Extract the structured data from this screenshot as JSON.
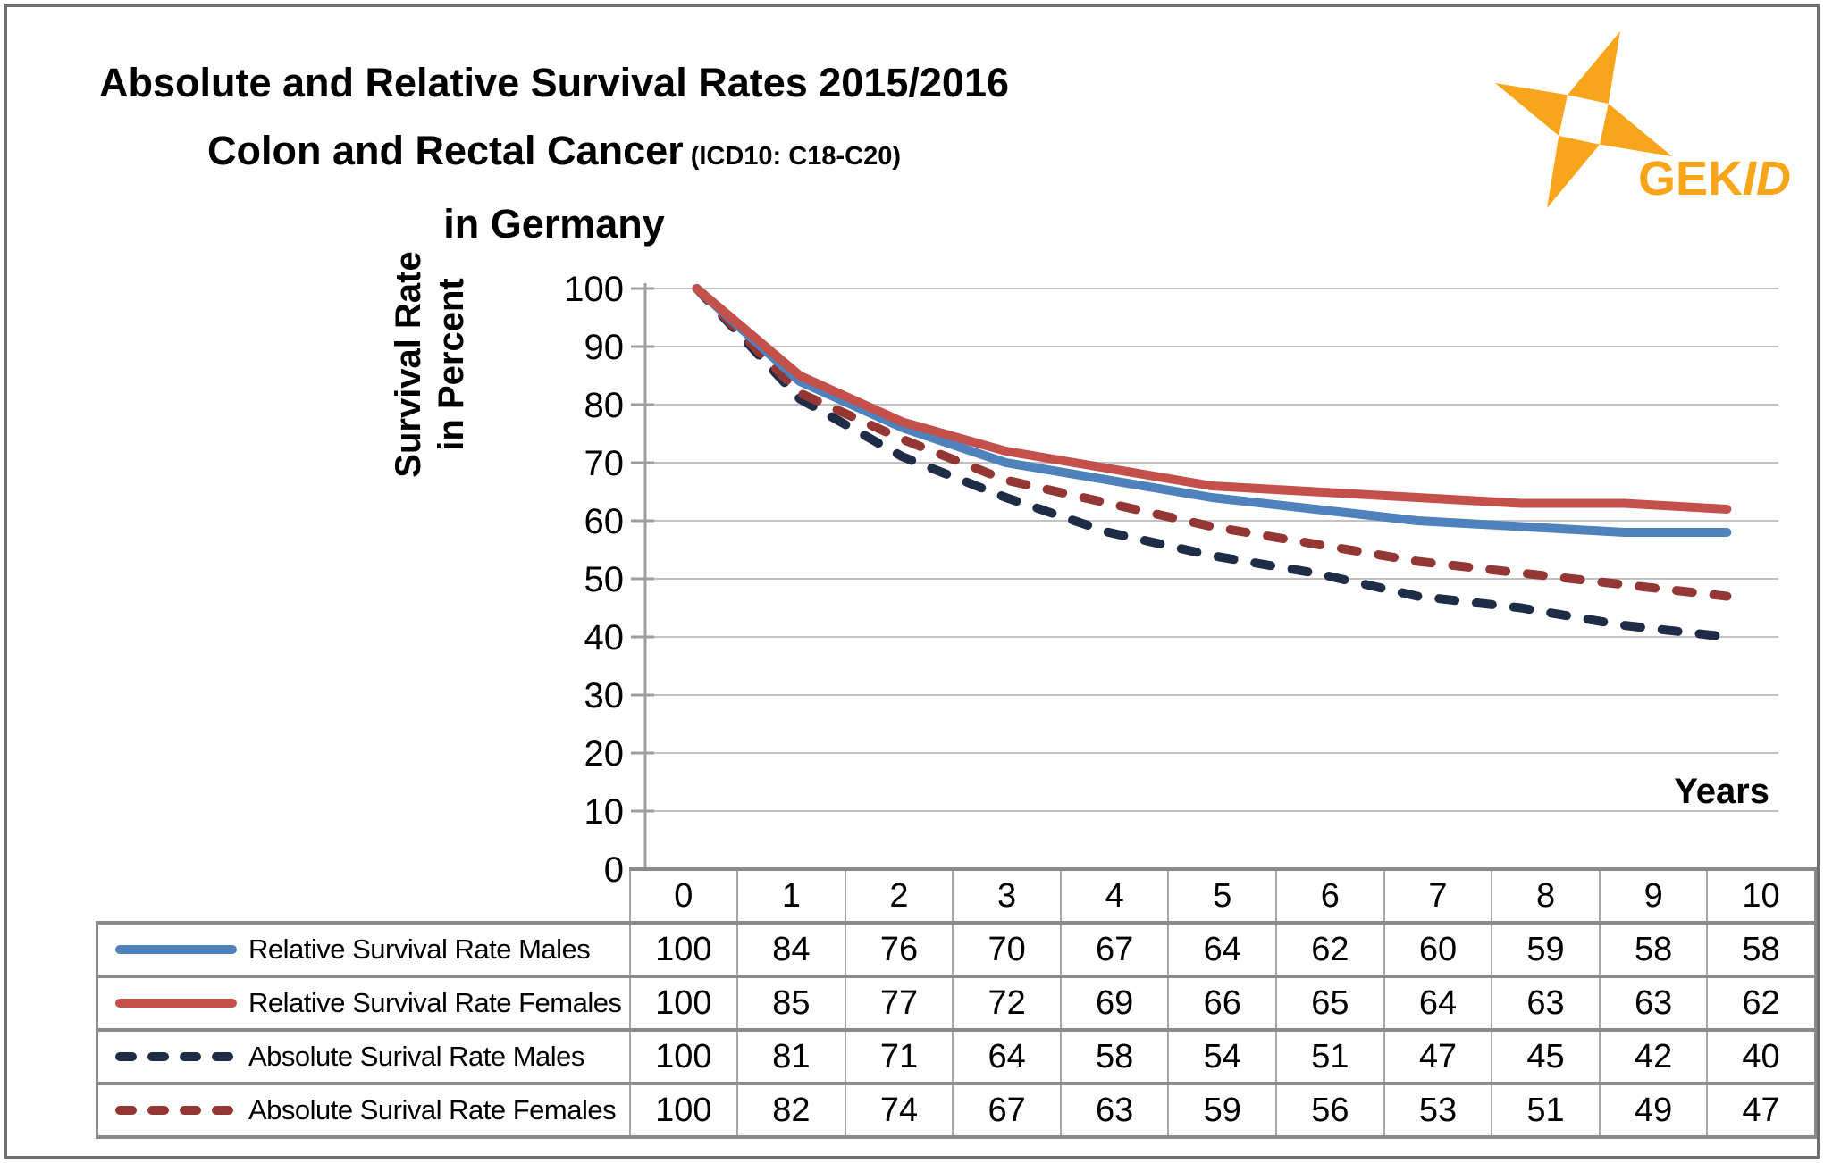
{
  "title": {
    "line1": "Absolute and Relative Survival Rates 2015/2016",
    "line2_main": "Colon and Rectal Cancer",
    "line2_sub": " (ICD10: C18-C20)",
    "line3": "in Germany"
  },
  "logo": {
    "text_bold": "GEK",
    "text_italic": "ID",
    "color": "#F9A51B"
  },
  "chart_data": {
    "type": "line",
    "title": "Absolute and Relative Survival Rates 2015/2016 Colon and Rectal Cancer (ICD10: C18-C20) in Germany",
    "ylabel_lines": [
      "Survival Rate",
      "in Percent"
    ],
    "xlabel": "Years",
    "categories": [
      "0",
      "1",
      "2",
      "3",
      "4",
      "5",
      "6",
      "7",
      "8",
      "9",
      "10"
    ],
    "ylim": [
      0,
      100
    ],
    "yticks": [
      0,
      10,
      20,
      30,
      40,
      50,
      60,
      70,
      80,
      90,
      100
    ],
    "grid": true,
    "legend_position": "table-left-column",
    "series": [
      {
        "name": "Relative Survival Rate Males",
        "color": "#4F81BD",
        "line_style": "solid",
        "values": [
          100,
          84,
          76,
          70,
          67,
          64,
          62,
          60,
          59,
          58,
          58
        ]
      },
      {
        "name": "Relative Survival Rate Females",
        "color": "#C4504C",
        "line_style": "solid",
        "values": [
          100,
          85,
          77,
          72,
          69,
          66,
          65,
          64,
          63,
          63,
          62
        ]
      },
      {
        "name": "Absolute Surival Rate Males",
        "color": "#1F2C47",
        "line_style": "dashed",
        "values": [
          100,
          81,
          71,
          64,
          58,
          54,
          51,
          47,
          45,
          42,
          40
        ]
      },
      {
        "name": "Absolute Surival Rate Females",
        "color": "#943734",
        "line_style": "dashed",
        "values": [
          100,
          82,
          74,
          67,
          63,
          59,
          56,
          53,
          51,
          49,
          47
        ]
      }
    ]
  }
}
